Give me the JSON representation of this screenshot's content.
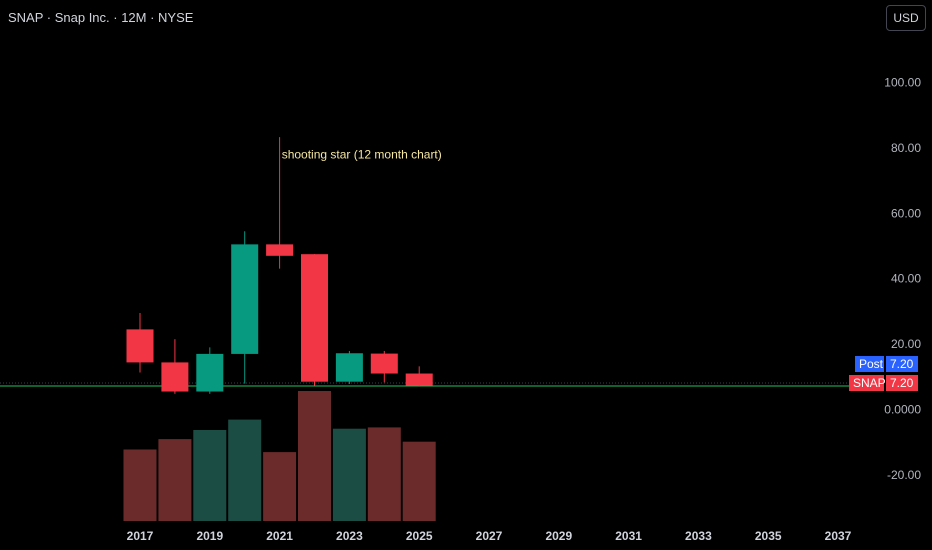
{
  "header": {
    "title": "SNAP · Snap Inc. · 12M · NYSE",
    "currency": "USD"
  },
  "price_tags": {
    "post_label": "Post",
    "post_value": "7.20",
    "post_color": "#2962ff",
    "symbol_label": "SNAP",
    "symbol_value": "7.20",
    "symbol_color": "#f23645"
  },
  "colors": {
    "up": "#089981",
    "down": "#f23645",
    "volume_up": "#1b4d45",
    "volume_down": "#6b2b2b",
    "price_line": "#22c55e",
    "annotation": "#f5e6a0"
  },
  "chart_data": {
    "type": "candlestick",
    "symbol": "SNAP",
    "interval": "12M",
    "y_axis": {
      "range": [
        -35,
        110
      ],
      "ticks": [
        {
          "value": 100,
          "label": "100.00"
        },
        {
          "value": 80,
          "label": "80.00"
        },
        {
          "value": 60,
          "label": "60.00"
        },
        {
          "value": 40,
          "label": "40.00"
        },
        {
          "value": 20,
          "label": "20.00"
        },
        {
          "value": 0,
          "label": "0.0000"
        },
        {
          "value": -20,
          "label": "-20.00"
        }
      ]
    },
    "x_axis": {
      "range": [
        2016.5,
        2037.5
      ],
      "ticks": [
        "2017",
        "2019",
        "2021",
        "2023",
        "2025",
        "2027",
        "2029",
        "2031",
        "2033",
        "2035",
        "2037"
      ]
    },
    "candles": [
      {
        "year": 2017,
        "open": 24.5,
        "high": 29.5,
        "low": 11.3,
        "close": 14.4
      },
      {
        "year": 2018,
        "open": 14.4,
        "high": 21.5,
        "low": 4.8,
        "close": 5.5
      },
      {
        "year": 2019,
        "open": 5.5,
        "high": 19.0,
        "low": 4.8,
        "close": 17.0
      },
      {
        "year": 2020,
        "open": 17.0,
        "high": 54.5,
        "low": 7.9,
        "close": 50.5
      },
      {
        "year": 2021,
        "open": 50.5,
        "high": 83.3,
        "low": 43.1,
        "close": 47.0
      },
      {
        "year": 2022,
        "open": 47.5,
        "high": 47.5,
        "low": 7.3,
        "close": 8.5
      },
      {
        "year": 2023,
        "open": 8.5,
        "high": 17.9,
        "low": 7.8,
        "close": 17.2
      },
      {
        "year": 2024,
        "open": 17.1,
        "high": 17.9,
        "low": 8.3,
        "close": 11.0
      },
      {
        "year": 2025,
        "open": 11.0,
        "high": 13.2,
        "low": 7.0,
        "close": 7.3
      }
    ],
    "volume_relative": [
      0.55,
      0.63,
      0.7,
      0.78,
      0.53,
      1.0,
      0.71,
      0.72,
      0.61
    ],
    "last_price": 7.2,
    "annotations": [
      {
        "text": "shooting star (12 month chart)",
        "year": 2021.06,
        "value": 78
      }
    ]
  }
}
